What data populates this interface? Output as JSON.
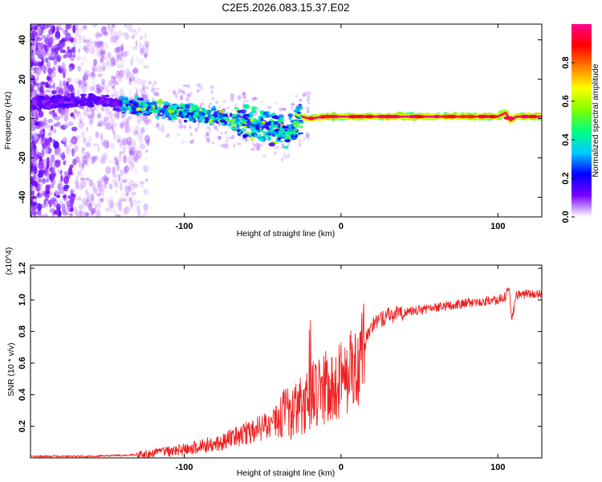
{
  "figure": {
    "title": "C2E5.2026.083.15.37.E02"
  },
  "chart_data": [
    {
      "type": "heatmap",
      "name": "spectrogram",
      "xlabel": "Height of straight line (km)",
      "ylabel": "Frequency (Hz)",
      "xlim": [
        -198,
        128
      ],
      "ylim": [
        -50,
        48
      ],
      "xticks": [
        -100,
        0,
        100
      ],
      "yticks": [
        -40,
        -20,
        0,
        20,
        40
      ],
      "grid": false,
      "ridge": {
        "x": [
          -198,
          -170,
          -150,
          -140,
          -120,
          -100,
          -80,
          -65,
          -55,
          -45,
          -35,
          -30,
          -25,
          -20,
          -10,
          0,
          20,
          50,
          80,
          100,
          105,
          108,
          112,
          128
        ],
        "y": [
          8,
          9,
          9,
          7,
          5,
          3,
          1,
          -1,
          -3,
          -5,
          -7,
          -3,
          1,
          0,
          1,
          1,
          1,
          1,
          1,
          1,
          3,
          -1,
          1,
          1
        ]
      },
      "colorbar": {
        "label": "Normalized spectral amplitude",
        "range": [
          0,
          1
        ],
        "ticks": [
          0.0,
          0.2,
          0.4,
          0.6,
          0.8
        ],
        "tick_labels": [
          "0.0",
          "0.2",
          "0.4",
          "0.6",
          "0.8"
        ],
        "colormap": [
          "#ffffff",
          "#7a00ff",
          "#0000ff",
          "#00ccff",
          "#00ff80",
          "#80ff00",
          "#ffff00",
          "#ff8000",
          "#ff0000",
          "#ff0090"
        ]
      }
    },
    {
      "type": "line",
      "name": "snr",
      "xlabel": "Height of straight line (km)",
      "ylabel": "SNR (10 * v/v)",
      "y_scale_note": "(x10^4)",
      "xlim": [
        -198,
        128
      ],
      "ylim": [
        0,
        1.22
      ],
      "xticks": [
        -100,
        0,
        100
      ],
      "yticks": [
        0.2,
        0.4,
        0.6,
        0.8,
        1.0,
        1.2
      ],
      "ytick_labels": [
        "0.2",
        "0.4",
        "0.6",
        "0.8",
        "1.0",
        "1.2"
      ],
      "color": "#ee2222",
      "grid": false,
      "envelope": {
        "x": [
          -198,
          -160,
          -130,
          -110,
          -90,
          -70,
          -55,
          -40,
          -30,
          -25,
          -20,
          -18,
          -15,
          -10,
          -5,
          0,
          10,
          15,
          20,
          30,
          40,
          60,
          80,
          100,
          105,
          107,
          109,
          112,
          128
        ],
        "y": [
          0.01,
          0.01,
          0.02,
          0.04,
          0.07,
          0.12,
          0.18,
          0.24,
          0.28,
          0.32,
          0.36,
          0.4,
          0.43,
          0.45,
          0.47,
          0.5,
          0.58,
          0.72,
          0.84,
          0.9,
          0.92,
          0.95,
          0.98,
          1.0,
          1.02,
          1.08,
          0.88,
          1.03,
          1.04
        ]
      }
    }
  ]
}
